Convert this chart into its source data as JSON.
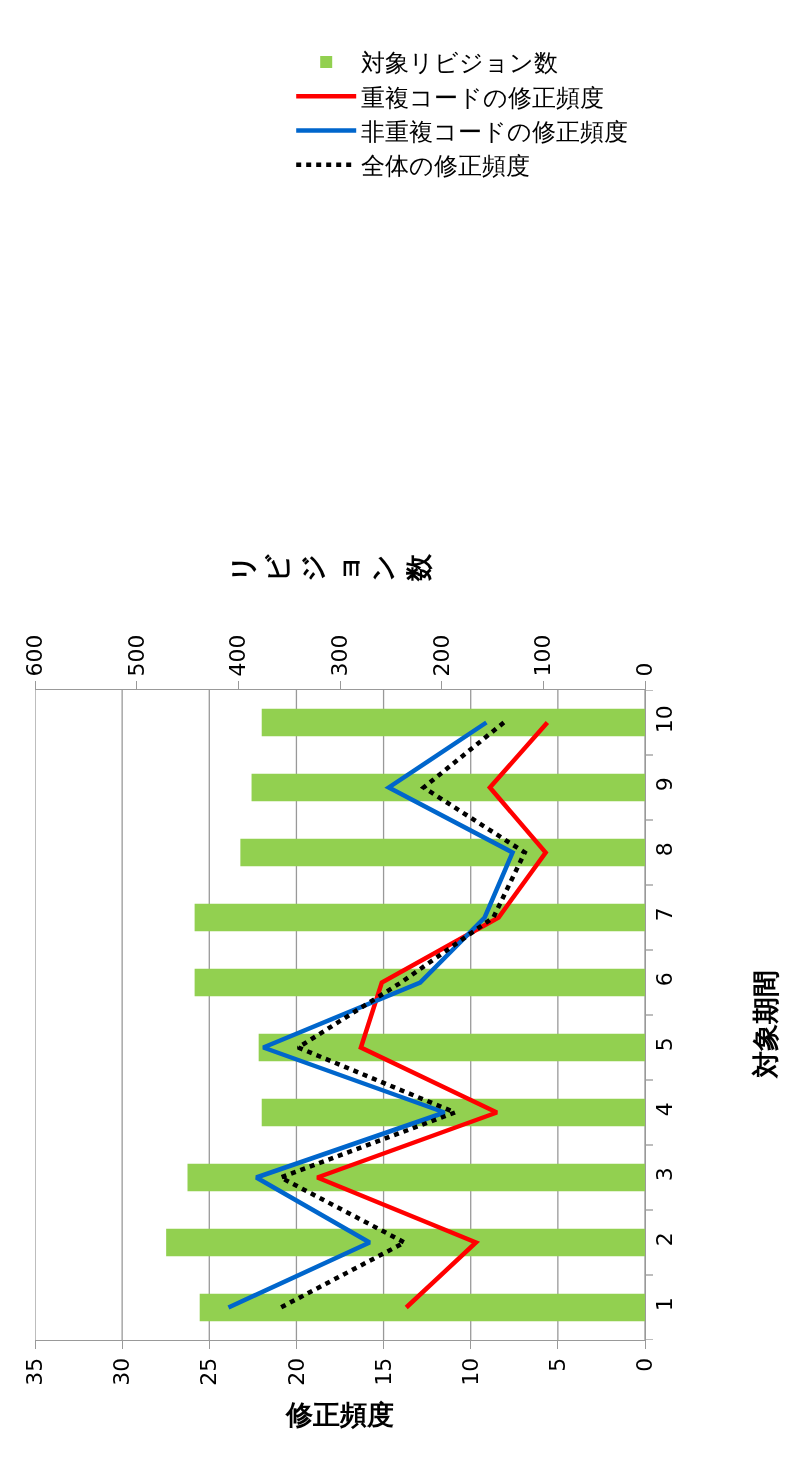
{
  "chart_data": {
    "type": "bar",
    "orientation": "horizontal",
    "categories": [
      "10",
      "9",
      "8",
      "7",
      "6",
      "5",
      "4",
      "3",
      "2",
      "1"
    ],
    "series": [
      {
        "name": "対象リビジョン数",
        "axis": "x2",
        "color": "#92d050",
        "values": [
          377,
          387,
          398,
          443,
          443,
          380,
          377,
          450,
          471,
          438
        ]
      },
      {
        "name": "重複コードの修正頻度",
        "type": "line",
        "color": "#ff0000",
        "line_style": "solid",
        "values": [
          5.6,
          8.9,
          5.7,
          8.4,
          15.1,
          16.3,
          8.5,
          18.8,
          9.7,
          13.7
        ]
      },
      {
        "name": "非重複コードの修正頻度",
        "type": "line",
        "color": "#0066cc",
        "line_style": "solid",
        "values": [
          9.1,
          14.7,
          7.6,
          9.2,
          12.9,
          21.9,
          11.5,
          22.3,
          15.8,
          23.9
        ]
      },
      {
        "name": "全体の修正頻度",
        "type": "line",
        "color": "#000000",
        "line_style": "dotted",
        "values": [
          8.1,
          12.7,
          6.9,
          8.7,
          14.0,
          19.9,
          10.9,
          20.9,
          13.8,
          20.9
        ]
      }
    ],
    "xlabel": "修正頻度",
    "x2label": "リビジョン数",
    "ylabel": "対象期間",
    "xlim": [
      35,
      0
    ],
    "xticks": [
      0,
      5,
      10,
      15,
      20,
      25,
      30,
      35
    ],
    "x2lim": [
      600,
      0
    ],
    "x2ticks": [
      0,
      100,
      200,
      300,
      400,
      500,
      600
    ],
    "grid": "x",
    "legend": "top",
    "marker": "none"
  }
}
